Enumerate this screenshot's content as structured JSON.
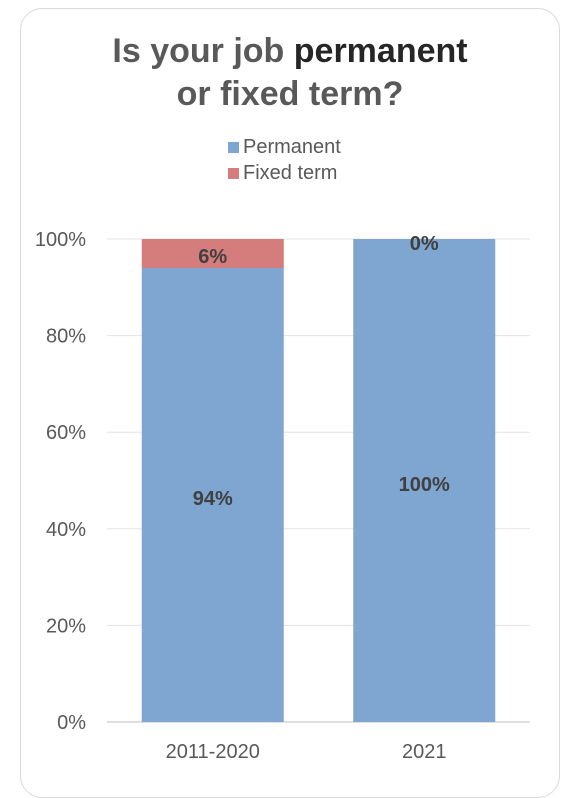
{
  "chart_data": {
    "type": "bar",
    "stacked": true,
    "title_prefix": "Is your job ",
    "title_emph1": "permanent",
    "title_line2_prefix": "or ",
    "title_emph2": "fixed term",
    "title_suffix": "?",
    "categories": [
      "2011-2020",
      "2021"
    ],
    "series": [
      {
        "name": "Permanent",
        "values": [
          94,
          100
        ],
        "labels": [
          "94%",
          "100%"
        ],
        "color": "#7ea6d1"
      },
      {
        "name": "Fixed term",
        "values": [
          6,
          0
        ],
        "labels": [
          "6%",
          "0%"
        ],
        "color": "#d47d7c"
      }
    ],
    "ylim": [
      0,
      100
    ],
    "yticks": [
      0,
      20,
      40,
      60,
      80,
      100
    ],
    "ytick_labels": [
      "0%",
      "20%",
      "40%",
      "60%",
      "80%",
      "100%"
    ],
    "grid": true,
    "legend_position": "top"
  }
}
